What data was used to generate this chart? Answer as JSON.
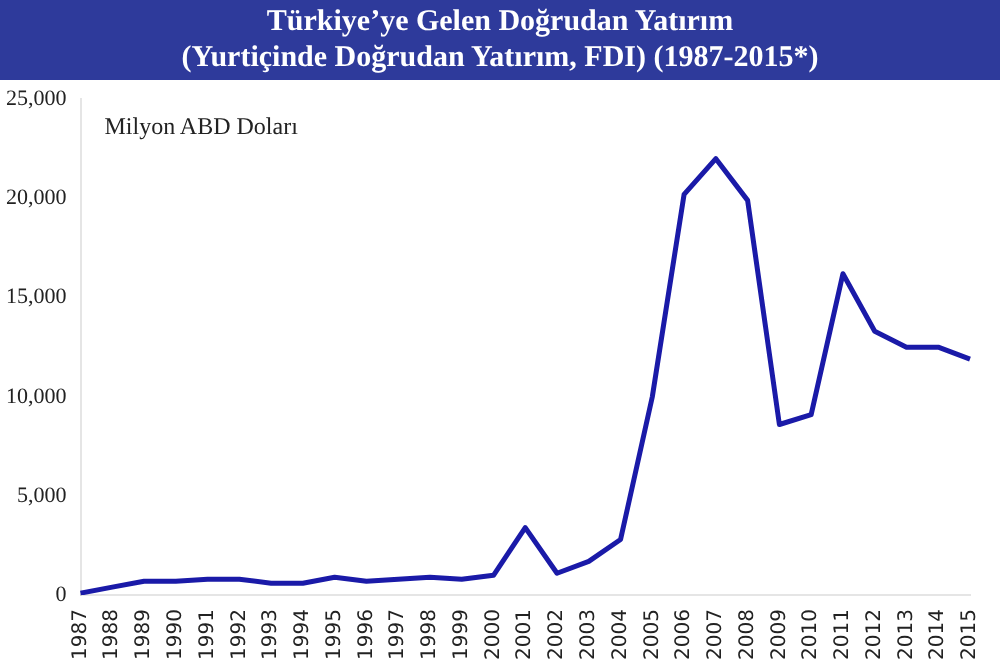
{
  "chart_data": {
    "type": "line",
    "title": "Türkiye’ye Gelen Doğrudan Yatırım",
    "subtitle": "(Yurtiçinde Doğrudan Yatırım, FDI) (1987-2015*)",
    "annotations": [
      "Milyon ABD Doları"
    ],
    "categories": [
      "1987",
      "1988",
      "1989",
      "1990",
      "1991",
      "1992",
      "1993",
      "1994",
      "1995",
      "1996",
      "1997",
      "1998",
      "1999",
      "2000",
      "2001",
      "2002",
      "2003",
      "2004",
      "2005",
      "2006",
      "2007",
      "2008",
      "2009",
      "2010",
      "2011",
      "2012",
      "2013",
      "2014",
      "2015"
    ],
    "series": [
      {
        "color": "#1a1aa8",
        "values": [
          100,
          400,
          700,
          700,
          800,
          800,
          600,
          600,
          900,
          700,
          800,
          900,
          800,
          1000,
          3400,
          1100,
          1700,
          2800,
          10000,
          20200,
          22000,
          19900,
          8600,
          9100,
          16200,
          13300,
          12500,
          12500,
          11900
        ]
      }
    ],
    "ylim": [
      0,
      25000
    ],
    "yticks": [
      0,
      {
        "value": 5000,
        "label": "5,000"
      },
      {
        "value": 10000,
        "label": "10,000"
      },
      {
        "value": 15000,
        "label": "15,000"
      },
      {
        "value": 20000,
        "label": "20,000"
      },
      {
        "value": 25000,
        "label": "25,000"
      }
    ],
    "grid": false,
    "legend": false,
    "marker": "none",
    "line_style": "solid"
  }
}
